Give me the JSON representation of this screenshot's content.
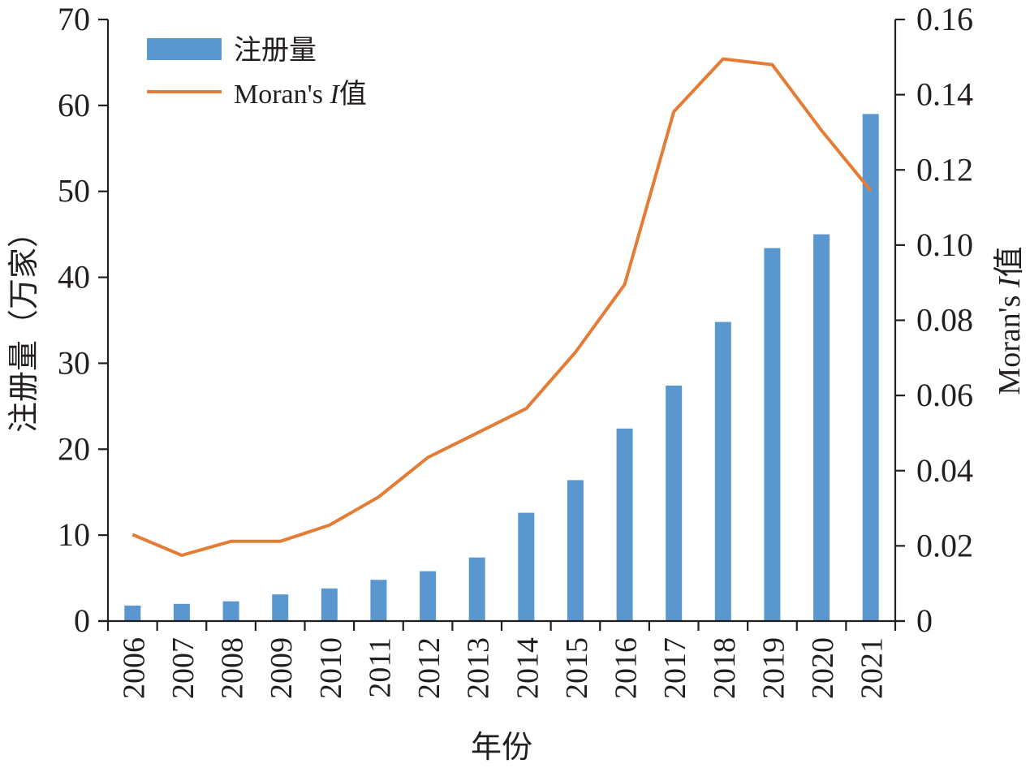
{
  "chart_data": {
    "type": "bar+line",
    "categories": [
      "2006",
      "2007",
      "2008",
      "2009",
      "2010",
      "2011",
      "2012",
      "2013",
      "2014",
      "2015",
      "2016",
      "2017",
      "2018",
      "2019",
      "2020",
      "2021"
    ],
    "series": [
      {
        "name": "注册量",
        "type": "bar",
        "axis": "left",
        "color": "#5b97cf",
        "values": [
          1.8,
          2.0,
          2.3,
          3.1,
          3.8,
          4.8,
          5.8,
          7.4,
          12.6,
          16.4,
          22.4,
          27.4,
          34.8,
          43.4,
          45.0,
          59.0
        ]
      },
      {
        "name": "Moran's I值",
        "type": "line",
        "axis": "right",
        "color": "#e47c35",
        "values": [
          0.023,
          0.0175,
          0.0212,
          0.0212,
          0.0255,
          0.033,
          0.0435,
          0.05,
          0.0565,
          0.0715,
          0.0895,
          0.1355,
          0.1495,
          0.148,
          0.1305,
          0.1145
        ]
      }
    ],
    "xlabel": "年份",
    "ylabel_left": "注册量（万家）",
    "ylabel_right": "Moran's I值",
    "ylim_left": [
      0,
      70
    ],
    "ylim_right": [
      0,
      0.16
    ],
    "yticks_left": [
      "0",
      "10",
      "20",
      "30",
      "40",
      "50",
      "60",
      "70"
    ],
    "yticks_right": [
      "0",
      "0.02",
      "0.04",
      "0.06",
      "0.08",
      "0.10",
      "0.12",
      "0.14",
      "0.16"
    ],
    "grid": false,
    "legend_position": "top-left",
    "legend": {
      "bar_label": "注册量",
      "line_label_prefix": "Moran's ",
      "line_label_italic": "I",
      "line_label_suffix": "值"
    },
    "axis_titles": {
      "x": "年份",
      "left": "注册量（万家）",
      "right_prefix": "Moran's ",
      "right_italic": "I",
      "right_suffix": "值"
    }
  }
}
